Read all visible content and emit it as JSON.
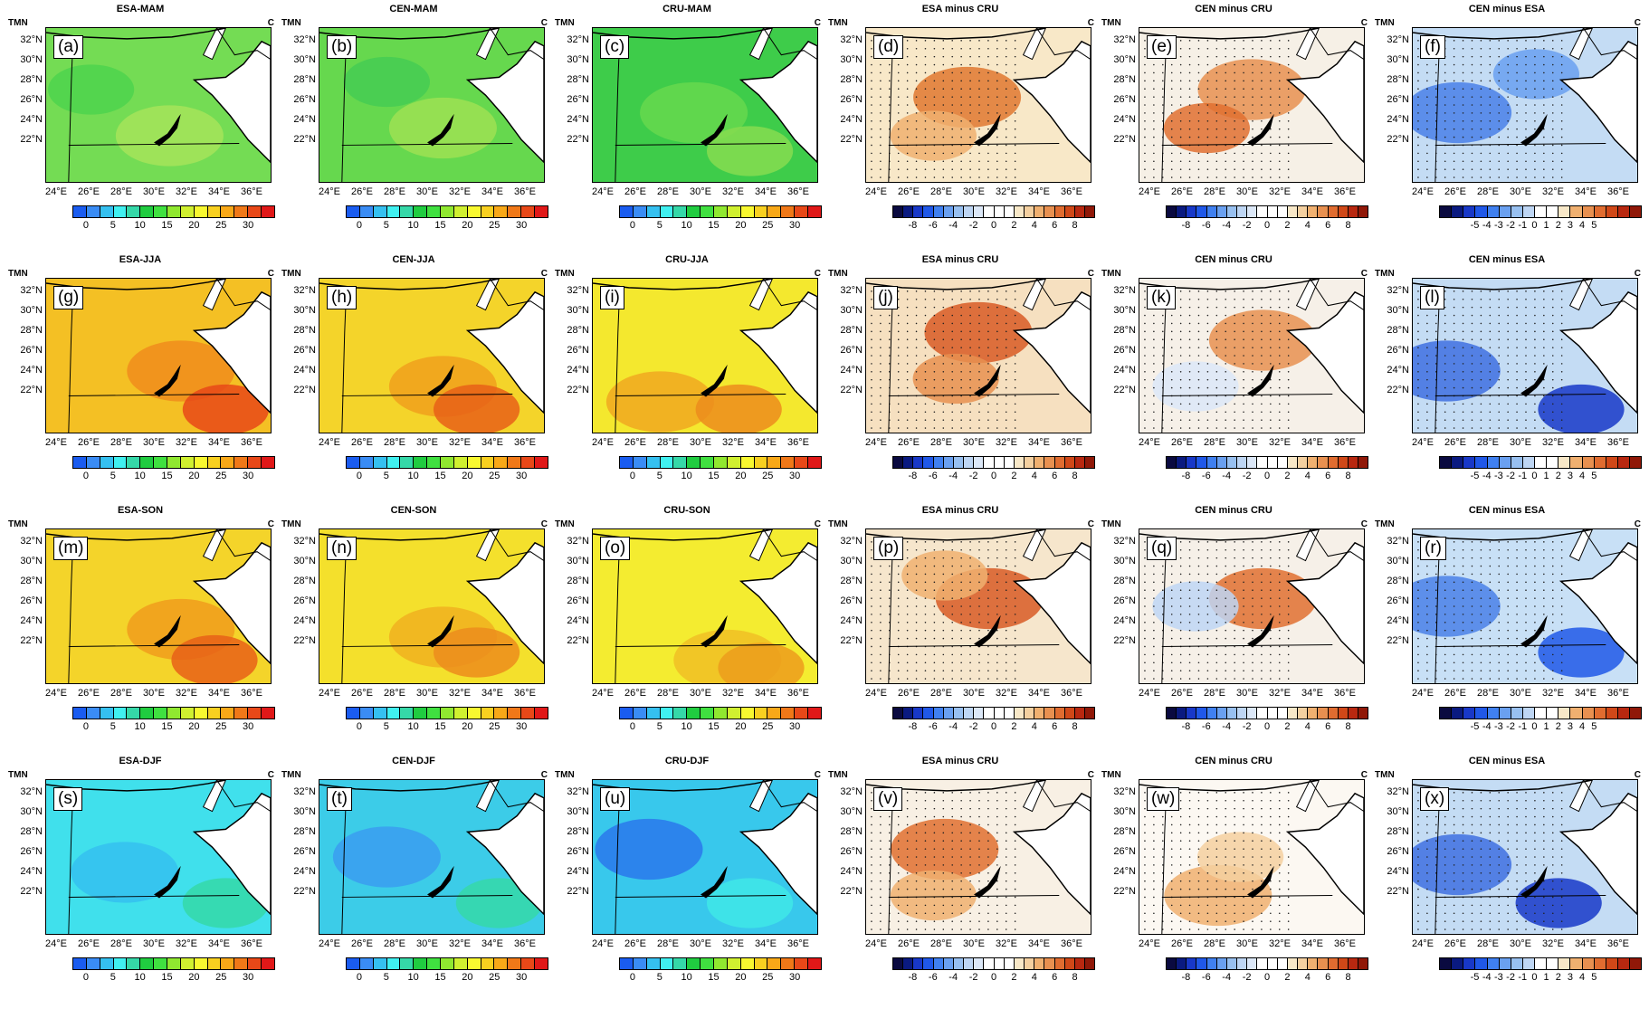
{
  "common": {
    "var_label": "TMN",
    "unit_label": "C",
    "lat_labels": [
      "32°N",
      "30°N",
      "28°N",
      "26°N",
      "24°N",
      "22°N"
    ],
    "lon_labels": [
      "24°E",
      "26°E",
      "28°E",
      "30°E",
      "32°E",
      "34°E",
      "36°E"
    ]
  },
  "colorbars": {
    "abs": {
      "ticks": [
        "0",
        "5",
        "10",
        "15",
        "20",
        "25",
        "30"
      ],
      "colors": [
        "#1a5cf0",
        "#3a8cf5",
        "#35c0f0",
        "#40f0f0",
        "#35d8a8",
        "#20cc40",
        "#40e040",
        "#90e830",
        "#d0f030",
        "#f8f830",
        "#f8d020",
        "#f8a818",
        "#f07818",
        "#e84818",
        "#e01818"
      ]
    },
    "diff8": {
      "ticks": [
        "-8",
        "-6",
        "-4",
        "-2",
        "0",
        "2",
        "4",
        "6",
        "8"
      ],
      "colors": [
        "#0a0a40",
        "#0a1a80",
        "#1838c8",
        "#2058e8",
        "#4080f0",
        "#6aa0f0",
        "#98c0f0",
        "#bed6f4",
        "#dce8f8",
        "#ffffff",
        "#ffffff",
        "#ffffff",
        "#f8e8c8",
        "#f4d0a0",
        "#f0b070",
        "#e89050",
        "#e06c30",
        "#d04818",
        "#b82810",
        "#901808"
      ]
    },
    "diff5": {
      "ticks": [
        "-5",
        "-4",
        "-3",
        "-2",
        "-1",
        "0",
        "1",
        "2",
        "3",
        "4",
        "5"
      ],
      "colors": [
        "#0a0a40",
        "#0a1a80",
        "#1838c8",
        "#2058e8",
        "#4080f0",
        "#6aa0f0",
        "#98c0f0",
        "#bed6f4",
        "#ffffff",
        "#ffffff",
        "#f8e8c8",
        "#f0b070",
        "#e89050",
        "#e06c30",
        "#d04818",
        "#b82810",
        "#901808"
      ]
    }
  },
  "panels": [
    {
      "label": "(a)",
      "title": "ESA-MAM",
      "bar": "abs",
      "fill": "#74dc54",
      "blobs": [
        [
          "#a6e45a",
          0.55,
          0.7
        ],
        [
          "#4ed44e",
          0.2,
          0.4
        ]
      ],
      "stipple": false
    },
    {
      "label": "(b)",
      "title": "CEN-MAM",
      "bar": "abs",
      "fill": "#66d84e",
      "blobs": [
        [
          "#9ee254",
          0.55,
          0.65
        ],
        [
          "#45cd54",
          0.3,
          0.35
        ]
      ],
      "stipple": false
    },
    {
      "label": "(c)",
      "title": "CRU-MAM",
      "bar": "abs",
      "fill": "#3ecc4a",
      "blobs": [
        [
          "#66d84e",
          0.45,
          0.55
        ],
        [
          "#86dc50",
          0.7,
          0.8
        ]
      ],
      "stipple": false
    },
    {
      "label": "(d)",
      "title": "ESA minus CRU",
      "bar": "diff8",
      "fill": "#f8e8c8",
      "blobs": [
        [
          "#e07830",
          0.45,
          0.45
        ],
        [
          "#f0b070",
          0.3,
          0.7
        ]
      ],
      "stipple": true
    },
    {
      "label": "(e)",
      "title": "CEN minus CRU",
      "bar": "diff8",
      "fill": "#f6f0e6",
      "blobs": [
        [
          "#e89050",
          0.5,
          0.4
        ],
        [
          "#e07030",
          0.3,
          0.65
        ]
      ],
      "stipple": true
    },
    {
      "label": "(f)",
      "title": "CEN minus ESA",
      "bar": "diff5",
      "fill": "#c4dcf4",
      "blobs": [
        [
          "#4a80e8",
          0.2,
          0.55
        ],
        [
          "#6aa0f0",
          0.55,
          0.3
        ]
      ],
      "stipple": true
    },
    {
      "label": "(g)",
      "title": "ESA-JJA",
      "bar": "abs",
      "fill": "#f4c024",
      "blobs": [
        [
          "#f08c1c",
          0.6,
          0.6
        ],
        [
          "#e84818",
          0.8,
          0.85
        ]
      ],
      "stipple": false
    },
    {
      "label": "(h)",
      "title": "CEN-JJA",
      "bar": "abs",
      "fill": "#f4d42a",
      "blobs": [
        [
          "#f0a01c",
          0.55,
          0.7
        ],
        [
          "#e86018",
          0.7,
          0.85
        ]
      ],
      "stipple": false
    },
    {
      "label": "(i)",
      "title": "CRU-JJA",
      "bar": "abs",
      "fill": "#f4e82e",
      "blobs": [
        [
          "#f0a820",
          0.3,
          0.8
        ],
        [
          "#ec8c1c",
          0.65,
          0.85
        ]
      ],
      "stipple": false
    },
    {
      "label": "(j)",
      "title": "ESA minus CRU",
      "bar": "diff8",
      "fill": "#f6e0c0",
      "blobs": [
        [
          "#d85a24",
          0.5,
          0.35
        ],
        [
          "#e89050",
          0.4,
          0.65
        ]
      ],
      "stipple": true
    },
    {
      "label": "(k)",
      "title": "CEN minus CRU",
      "bar": "diff8",
      "fill": "#f6f0e8",
      "blobs": [
        [
          "#e89050",
          0.55,
          0.4
        ],
        [
          "#dce8f8",
          0.25,
          0.7
        ]
      ],
      "stipple": true
    },
    {
      "label": "(l)",
      "title": "CEN minus ESA",
      "bar": "diff5",
      "fill": "#c4dcf4",
      "blobs": [
        [
          "#4070e0",
          0.15,
          0.6
        ],
        [
          "#1838c8",
          0.75,
          0.85
        ]
      ],
      "stipple": true
    },
    {
      "label": "(m)",
      "title": "ESA-SON",
      "bar": "abs",
      "fill": "#f4d42a",
      "blobs": [
        [
          "#f09c1c",
          0.6,
          0.65
        ],
        [
          "#e86018",
          0.75,
          0.85
        ]
      ],
      "stipple": false
    },
    {
      "label": "(n)",
      "title": "CEN-SON",
      "bar": "abs",
      "fill": "#f4e02c",
      "blobs": [
        [
          "#f0b020",
          0.55,
          0.7
        ],
        [
          "#ec8c1c",
          0.7,
          0.8
        ]
      ],
      "stipple": false
    },
    {
      "label": "(o)",
      "title": "CRU-SON",
      "bar": "abs",
      "fill": "#f4ec30",
      "blobs": [
        [
          "#f0c024",
          0.6,
          0.85
        ],
        [
          "#ec9c1c",
          0.75,
          0.9
        ]
      ],
      "stipple": false
    },
    {
      "label": "(p)",
      "title": "ESA minus CRU",
      "bar": "diff8",
      "fill": "#f6e6cc",
      "blobs": [
        [
          "#d85a24",
          0.55,
          0.45
        ],
        [
          "#f0b070",
          0.35,
          0.3
        ]
      ],
      "stipple": true
    },
    {
      "label": "(q)",
      "title": "CEN minus CRU",
      "bar": "diff8",
      "fill": "#f6f0e8",
      "blobs": [
        [
          "#e07030",
          0.55,
          0.45
        ],
        [
          "#bed6f4",
          0.25,
          0.5
        ]
      ],
      "stipple": true
    },
    {
      "label": "(r)",
      "title": "CEN minus ESA",
      "bar": "diff5",
      "fill": "#c8e0f6",
      "blobs": [
        [
          "#4a80e8",
          0.15,
          0.5
        ],
        [
          "#2058e8",
          0.75,
          0.8
        ]
      ],
      "stipple": true
    },
    {
      "label": "(s)",
      "title": "ESA-DJF",
      "bar": "abs",
      "fill": "#40e0ec",
      "blobs": [
        [
          "#35c0f0",
          0.35,
          0.6
        ],
        [
          "#35d8a8",
          0.8,
          0.8
        ]
      ],
      "stipple": false
    },
    {
      "label": "(t)",
      "title": "CEN-DJF",
      "bar": "abs",
      "fill": "#3ccce8",
      "blobs": [
        [
          "#3a9cf0",
          0.3,
          0.5
        ],
        [
          "#35d8a8",
          0.8,
          0.8
        ]
      ],
      "stipple": false
    },
    {
      "label": "(u)",
      "title": "CRU-DJF",
      "bar": "abs",
      "fill": "#38c8ec",
      "blobs": [
        [
          "#2a78ec",
          0.25,
          0.45
        ],
        [
          "#40e8e8",
          0.7,
          0.8
        ]
      ],
      "stipple": false
    },
    {
      "label": "(v)",
      "title": "ESA minus CRU",
      "bar": "diff8",
      "fill": "#f8f0e4",
      "blobs": [
        [
          "#e07030",
          0.35,
          0.45
        ],
        [
          "#f0b070",
          0.3,
          0.75
        ]
      ],
      "stipple": true
    },
    {
      "label": "(w)",
      "title": "CEN minus CRU",
      "bar": "diff8",
      "fill": "#fcf8f2",
      "blobs": [
        [
          "#f0b070",
          0.35,
          0.75
        ],
        [
          "#f4d0a0",
          0.45,
          0.5
        ]
      ],
      "stipple": true
    },
    {
      "label": "(x)",
      "title": "CEN minus ESA",
      "bar": "diff5",
      "fill": "#c4dcf4",
      "blobs": [
        [
          "#4070e0",
          0.2,
          0.55
        ],
        [
          "#1838c8",
          0.65,
          0.8
        ]
      ],
      "stipple": true
    }
  ]
}
